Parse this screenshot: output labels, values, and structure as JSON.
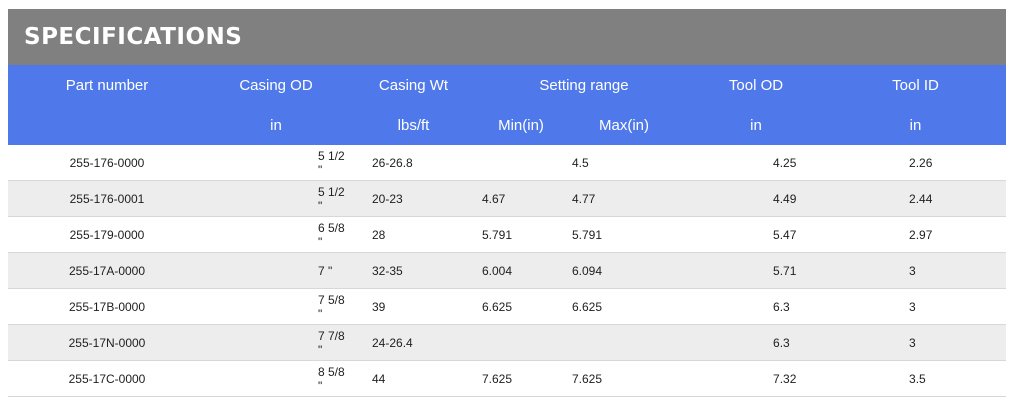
{
  "title": "SPECIFICATIONS",
  "header_row1": {
    "part_number": "Part number",
    "casing_od": "Casing OD",
    "casing_wt": "Casing Wt",
    "setting_range": "Setting range",
    "tool_od": "Tool OD",
    "tool_id": "Tool ID"
  },
  "header_row2": {
    "part_number": "",
    "casing_od": "in",
    "casing_wt": "lbs/ft",
    "min": "Min(in)",
    "max": "Max(in)",
    "tool_od": "in",
    "tool_id": "in"
  },
  "rows": [
    {
      "part": "255-176-0000",
      "od": "5 1/2 \"",
      "wt": "26-26.8",
      "min": "",
      "max": "4.5",
      "tool_od": "4.25",
      "tool_id": "2.26"
    },
    {
      "part": "255-176-0001",
      "od": "5 1/2 \"",
      "wt": "20-23",
      "min": "4.67",
      "max": "4.77",
      "tool_od": "4.49",
      "tool_id": "2.44"
    },
    {
      "part": "255-179-0000",
      "od": "6 5/8 \"",
      "wt": "28",
      "min": "5.791",
      "max": "5.791",
      "tool_od": "5.47",
      "tool_id": "2.97"
    },
    {
      "part": "255-17A-0000",
      "od": "7 \"",
      "wt": "32-35",
      "min": "6.004",
      "max": "6.094",
      "tool_od": "5.71",
      "tool_id": "3"
    },
    {
      "part": "255-17B-0000",
      "od": "7 5/8 \"",
      "wt": "39",
      "min": "6.625",
      "max": "6.625",
      "tool_od": "6.3",
      "tool_id": "3"
    },
    {
      "part": "255-17N-0000",
      "od": "7 7/8 \"",
      "wt": "24-26.4",
      "min": "",
      "max": "",
      "tool_od": "6.3",
      "tool_id": "3"
    },
    {
      "part": "255-17C-0000",
      "od": "8 5/8 \"",
      "wt": "44",
      "min": "7.625",
      "max": "7.625",
      "tool_od": "7.32",
      "tool_id": "3.5"
    }
  ]
}
